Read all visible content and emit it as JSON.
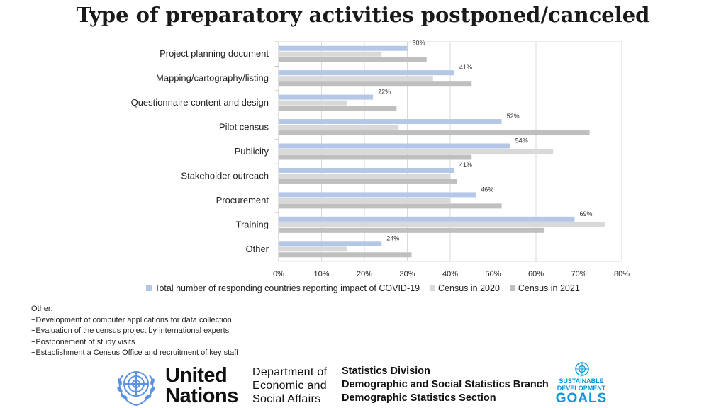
{
  "chart_data": {
    "type": "bar",
    "orientation": "horizontal",
    "title": "Type of preparatory activities postponed/canceled",
    "categories": [
      "Project planning document",
      "Mapping/cartography/listing",
      "Questionnaire content and design",
      "Pilot census",
      "Publicity",
      "Stakeholder outreach",
      "Procurement",
      "Training",
      "Other"
    ],
    "series": [
      {
        "name": "Total number of responding countries reporting impact of COVID-19",
        "color": "#b4c7e7",
        "values": [
          30,
          41,
          22,
          52,
          54,
          41,
          46,
          69,
          24
        ],
        "labels": [
          "30%",
          "41%",
          "22%",
          "52%",
          "54%",
          "41%",
          "46%",
          "69%",
          "24%"
        ]
      },
      {
        "name": "Census in 2020",
        "color": "#d9d9d9",
        "values": [
          24,
          36,
          16,
          28,
          64,
          40,
          40,
          76,
          16
        ]
      },
      {
        "name": "Census in 2021",
        "color": "#bfbfbf",
        "values": [
          34.5,
          45,
          27.5,
          72.5,
          45,
          41.5,
          52,
          62,
          31
        ]
      }
    ],
    "xlim": [
      0,
      80
    ],
    "xticks": [
      "0%",
      "10%",
      "20%",
      "30%",
      "40%",
      "50%",
      "60%",
      "70%",
      "80%"
    ],
    "grid": true,
    "legend_position": "bottom"
  },
  "notes": {
    "heading": "Other:",
    "items": [
      "−Development of computer applications for data collection",
      "−Evaluation of the census project by international experts",
      "−Postponement of study visits",
      "−Establishment a Census Office and recruitment of key staff"
    ]
  },
  "footer": {
    "un_line1": "United",
    "un_line2": "Nations",
    "desa_line1": "Department of",
    "desa_line2": "Economic and",
    "desa_line3": "Social Affairs",
    "stat_line1": "Statistics Division",
    "stat_line2": "Demographic and Social Statistics Branch",
    "stat_line3": "Demographic Statistics Section",
    "sdg_line1": "SUSTAINABLE",
    "sdg_line2": "DEVELOPMENT",
    "sdg_line3": "GOALS"
  },
  "colors": {
    "un_blue": "#5b92e5",
    "sdg_blue": "#0a97d9"
  }
}
